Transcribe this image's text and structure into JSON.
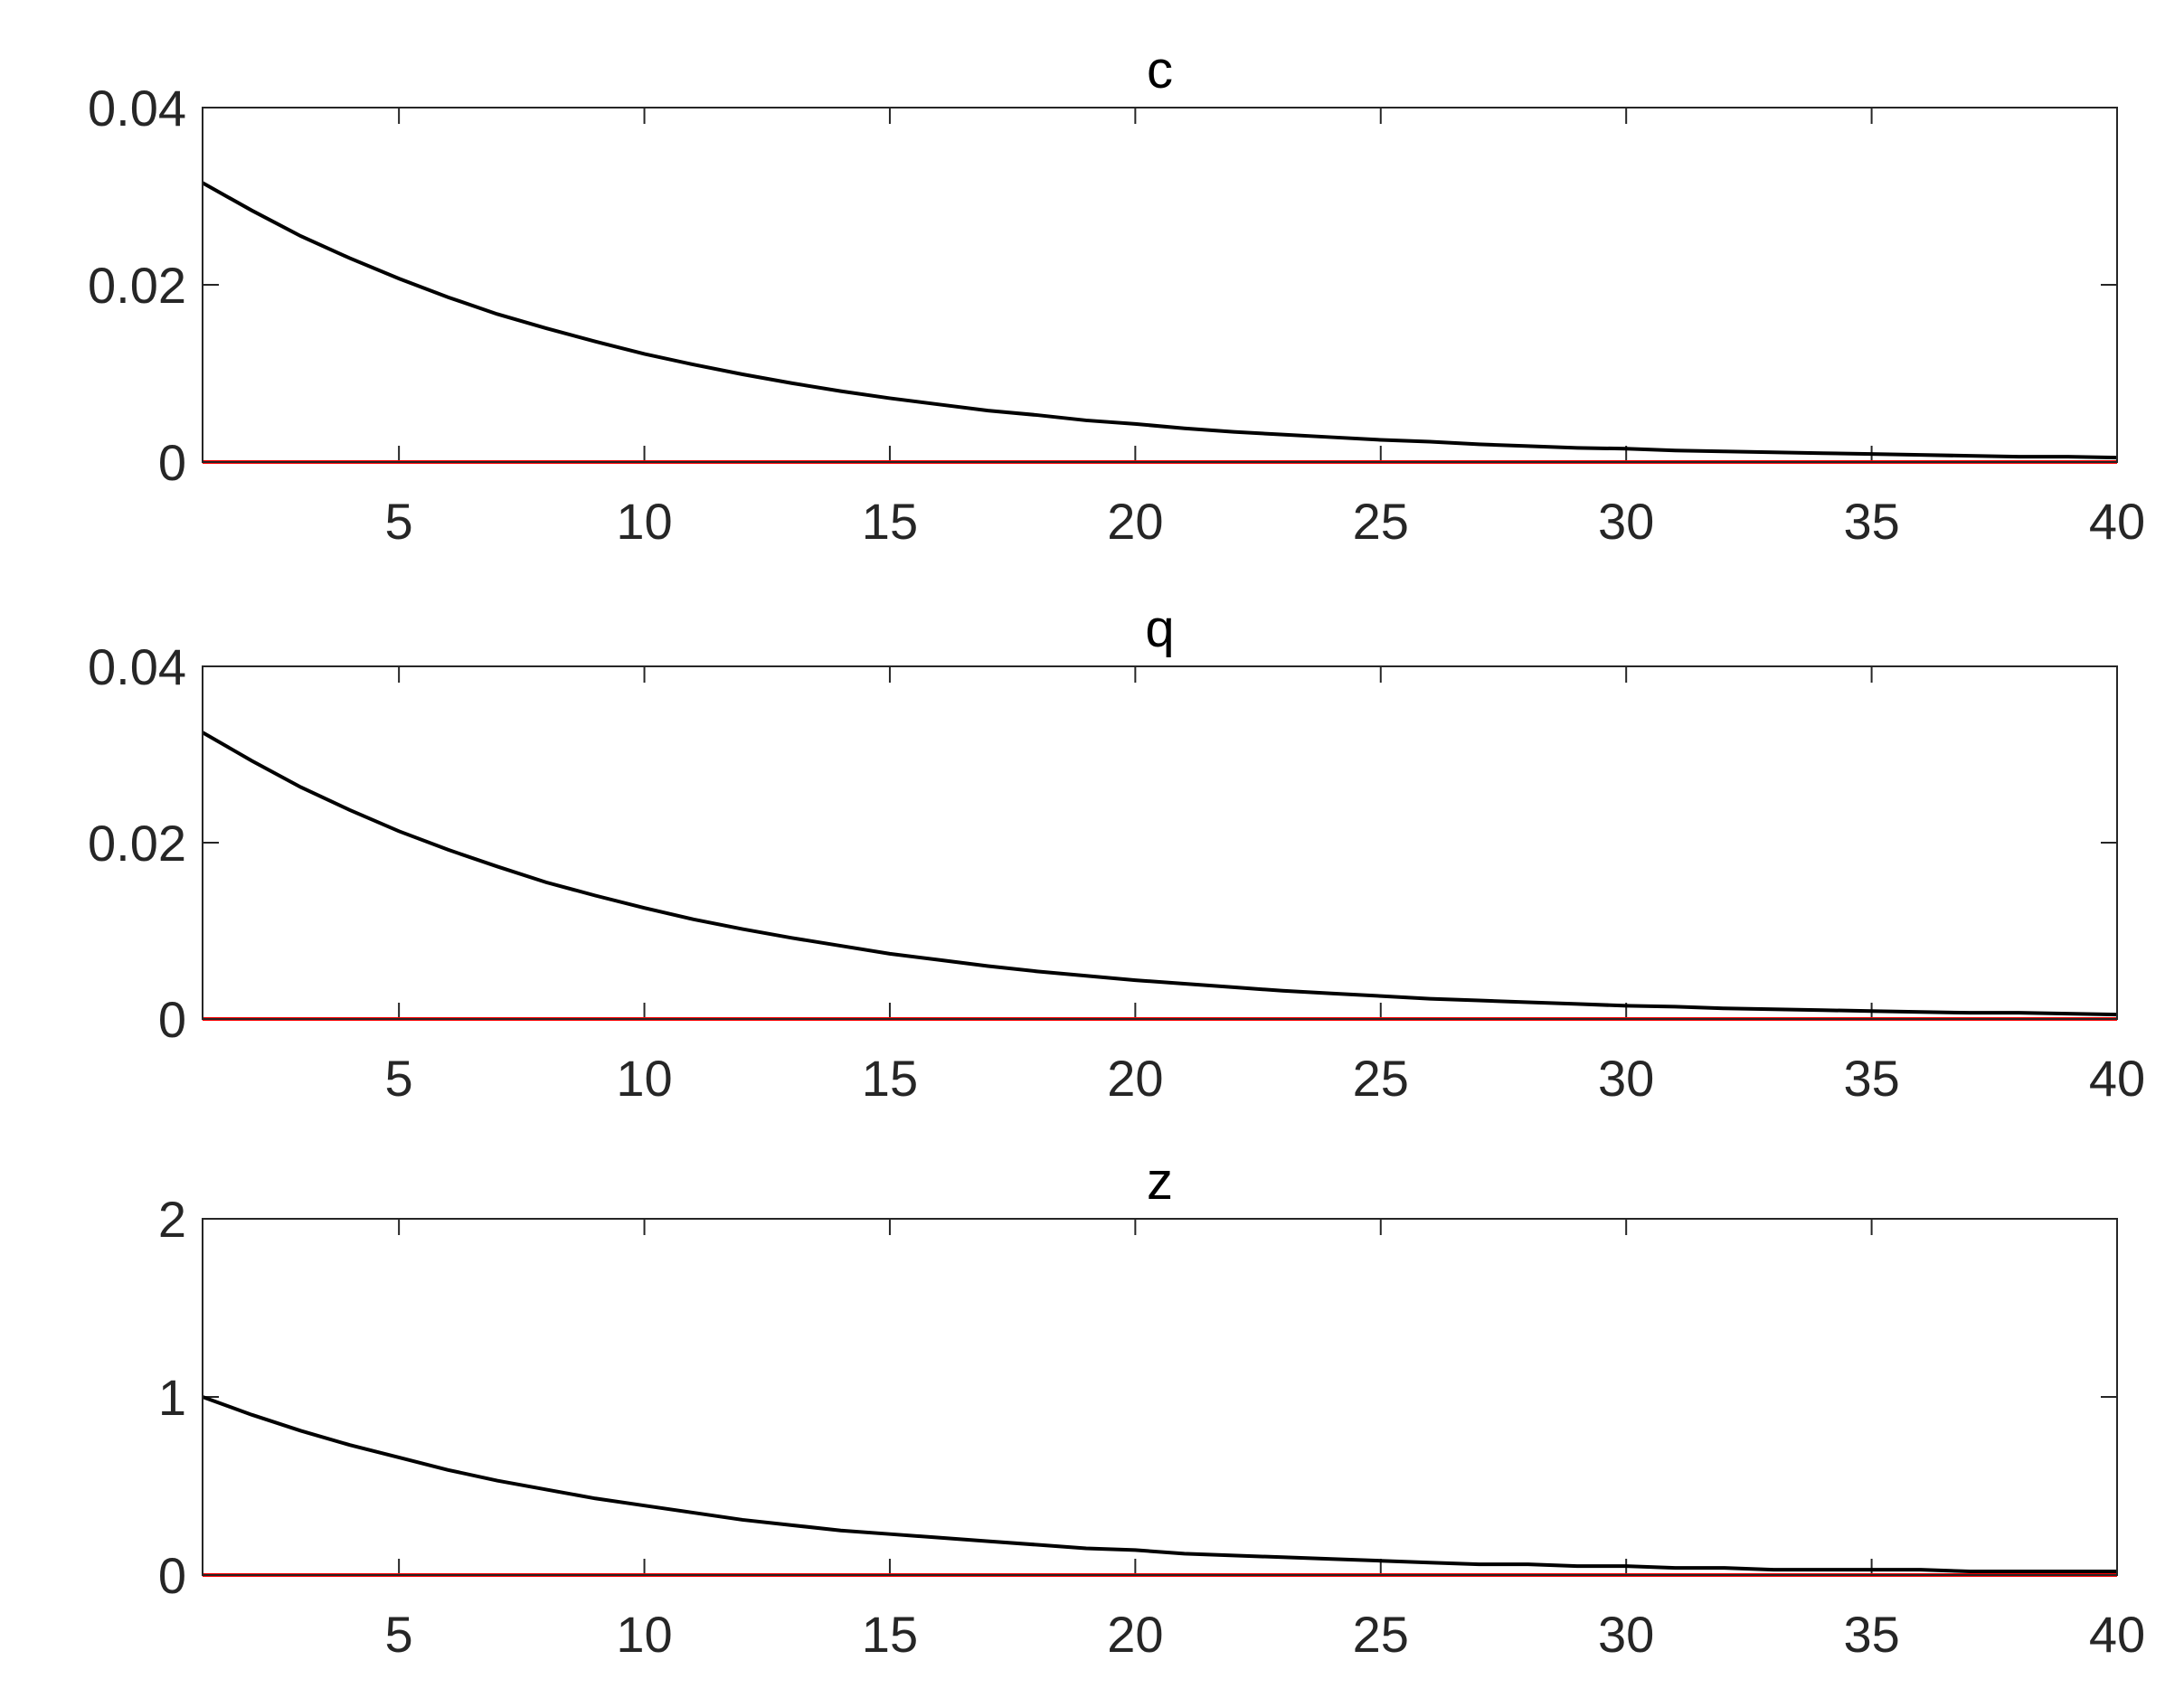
{
  "chart_data": [
    {
      "type": "line",
      "title": "c",
      "x": [
        1,
        2,
        3,
        4,
        5,
        6,
        7,
        8,
        9,
        10,
        11,
        12,
        13,
        14,
        15,
        16,
        17,
        18,
        19,
        20,
        21,
        22,
        23,
        24,
        25,
        26,
        27,
        28,
        29,
        30,
        31,
        32,
        33,
        34,
        35,
        36,
        37,
        38,
        39,
        40
      ],
      "series": [
        {
          "color": "#000000",
          "values": [
            0.0315,
            0.0284,
            0.0255,
            0.023,
            0.0207,
            0.0186,
            0.0167,
            0.0151,
            0.0136,
            0.0122,
            0.011,
            0.0099,
            0.0089,
            0.008,
            0.0072,
            0.0065,
            0.0058,
            0.0053,
            0.0047,
            0.0043,
            0.0038,
            0.0034,
            0.0031,
            0.0028,
            0.0025,
            0.0023,
            0.002,
            0.0018,
            0.0016,
            0.0015,
            0.0013,
            0.0012,
            0.0011,
            0.001,
            0.0009,
            0.0008,
            0.0007,
            0.0006,
            0.0006,
            0.0005
          ]
        },
        {
          "color": "#ff0000",
          "values": [
            0,
            0,
            0,
            0,
            0,
            0,
            0,
            0,
            0,
            0,
            0,
            0,
            0,
            0,
            0,
            0,
            0,
            0,
            0,
            0,
            0,
            0,
            0,
            0,
            0,
            0,
            0,
            0,
            0,
            0,
            0,
            0,
            0,
            0,
            0,
            0,
            0,
            0,
            0,
            0
          ]
        }
      ],
      "xlim": [
        1,
        40
      ],
      "xticks": [
        5,
        10,
        15,
        20,
        25,
        30,
        35,
        40
      ],
      "ylim": [
        0,
        0.04
      ],
      "yticks": [
        0,
        0.02,
        0.04
      ]
    },
    {
      "type": "line",
      "title": "q",
      "x": [
        1,
        2,
        3,
        4,
        5,
        6,
        7,
        8,
        9,
        10,
        11,
        12,
        13,
        14,
        15,
        16,
        17,
        18,
        19,
        20,
        21,
        22,
        23,
        24,
        25,
        26,
        27,
        28,
        29,
        30,
        31,
        32,
        33,
        34,
        35,
        36,
        37,
        38,
        39,
        40
      ],
      "series": [
        {
          "color": "#000000",
          "values": [
            0.0325,
            0.0293,
            0.0263,
            0.0237,
            0.0213,
            0.0192,
            0.0173,
            0.0155,
            0.014,
            0.0126,
            0.0113,
            0.0102,
            0.0092,
            0.0083,
            0.0074,
            0.0067,
            0.006,
            0.0054,
            0.0049,
            0.0044,
            0.004,
            0.0036,
            0.0032,
            0.0029,
            0.0026,
            0.0023,
            0.0021,
            0.0019,
            0.0017,
            0.0015,
            0.0014,
            0.0012,
            0.0011,
            0.001,
            0.0009,
            0.0008,
            0.0007,
            0.0007,
            0.0006,
            0.0005
          ]
        },
        {
          "color": "#ff0000",
          "values": [
            0,
            0,
            0,
            0,
            0,
            0,
            0,
            0,
            0,
            0,
            0,
            0,
            0,
            0,
            0,
            0,
            0,
            0,
            0,
            0,
            0,
            0,
            0,
            0,
            0,
            0,
            0,
            0,
            0,
            0,
            0,
            0,
            0,
            0,
            0,
            0,
            0,
            0,
            0,
            0
          ]
        }
      ],
      "xlim": [
        1,
        40
      ],
      "xticks": [
        5,
        10,
        15,
        20,
        25,
        30,
        35,
        40
      ],
      "ylim": [
        0,
        0.04
      ],
      "yticks": [
        0,
        0.02,
        0.04
      ]
    },
    {
      "type": "line",
      "title": "z",
      "x": [
        1,
        2,
        3,
        4,
        5,
        6,
        7,
        8,
        9,
        10,
        11,
        12,
        13,
        14,
        15,
        16,
        17,
        18,
        19,
        20,
        21,
        22,
        23,
        24,
        25,
        26,
        27,
        28,
        29,
        30,
        31,
        32,
        33,
        34,
        35,
        36,
        37,
        38,
        39,
        40
      ],
      "series": [
        {
          "color": "#000000",
          "values": [
            1,
            0.9,
            0.81,
            0.73,
            0.66,
            0.59,
            0.53,
            0.48,
            0.43,
            0.39,
            0.35,
            0.31,
            0.28,
            0.25,
            0.23,
            0.21,
            0.19,
            0.17,
            0.15,
            0.14,
            0.12,
            0.11,
            0.1,
            0.09,
            0.08,
            0.07,
            0.06,
            0.06,
            0.05,
            0.05,
            0.04,
            0.04,
            0.03,
            0.03,
            0.03,
            0.03,
            0.02,
            0.02,
            0.02,
            0.02
          ]
        },
        {
          "color": "#ff0000",
          "values": [
            0,
            0,
            0,
            0,
            0,
            0,
            0,
            0,
            0,
            0,
            0,
            0,
            0,
            0,
            0,
            0,
            0,
            0,
            0,
            0,
            0,
            0,
            0,
            0,
            0,
            0,
            0,
            0,
            0,
            0,
            0,
            0,
            0,
            0,
            0,
            0,
            0,
            0,
            0,
            0
          ]
        }
      ],
      "xlim": [
        1,
        40
      ],
      "xticks": [
        5,
        10,
        15,
        20,
        25,
        30,
        35,
        40
      ],
      "ylim": [
        0,
        2
      ],
      "yticks": [
        0,
        1,
        2
      ]
    }
  ]
}
